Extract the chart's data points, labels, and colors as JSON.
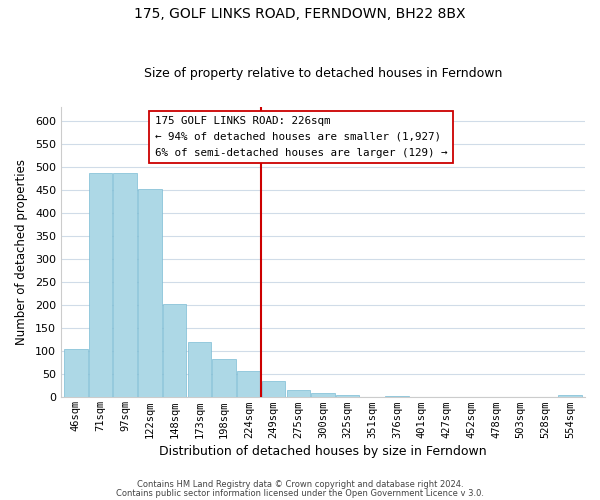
{
  "title": "175, GOLF LINKS ROAD, FERNDOWN, BH22 8BX",
  "subtitle": "Size of property relative to detached houses in Ferndown",
  "xlabel": "Distribution of detached houses by size in Ferndown",
  "ylabel": "Number of detached properties",
  "bar_labels": [
    "46sqm",
    "71sqm",
    "97sqm",
    "122sqm",
    "148sqm",
    "173sqm",
    "198sqm",
    "224sqm",
    "249sqm",
    "275sqm",
    "300sqm",
    "325sqm",
    "351sqm",
    "376sqm",
    "401sqm",
    "427sqm",
    "452sqm",
    "478sqm",
    "503sqm",
    "528sqm",
    "554sqm"
  ],
  "bar_values": [
    105,
    487,
    487,
    452,
    202,
    121,
    83,
    57,
    35,
    16,
    9,
    4,
    0,
    3,
    0,
    0,
    0,
    0,
    0,
    0,
    5
  ],
  "bar_color": "#add8e6",
  "bar_edge_color": "#7bbcd4",
  "vline_color": "#cc0000",
  "vline_index": 7,
  "ylim": [
    0,
    630
  ],
  "yticks": [
    0,
    50,
    100,
    150,
    200,
    250,
    300,
    350,
    400,
    450,
    500,
    550,
    600
  ],
  "annotation_title": "175 GOLF LINKS ROAD: 226sqm",
  "annotation_line1": "← 94% of detached houses are smaller (1,927)",
  "annotation_line2": "6% of semi-detached houses are larger (129) →",
  "annotation_box_color": "#ffffff",
  "annotation_box_edge": "#cc0000",
  "footer1": "Contains HM Land Registry data © Crown copyright and database right 2024.",
  "footer2": "Contains public sector information licensed under the Open Government Licence v 3.0.",
  "background_color": "#ffffff",
  "grid_color": "#d0dce8"
}
